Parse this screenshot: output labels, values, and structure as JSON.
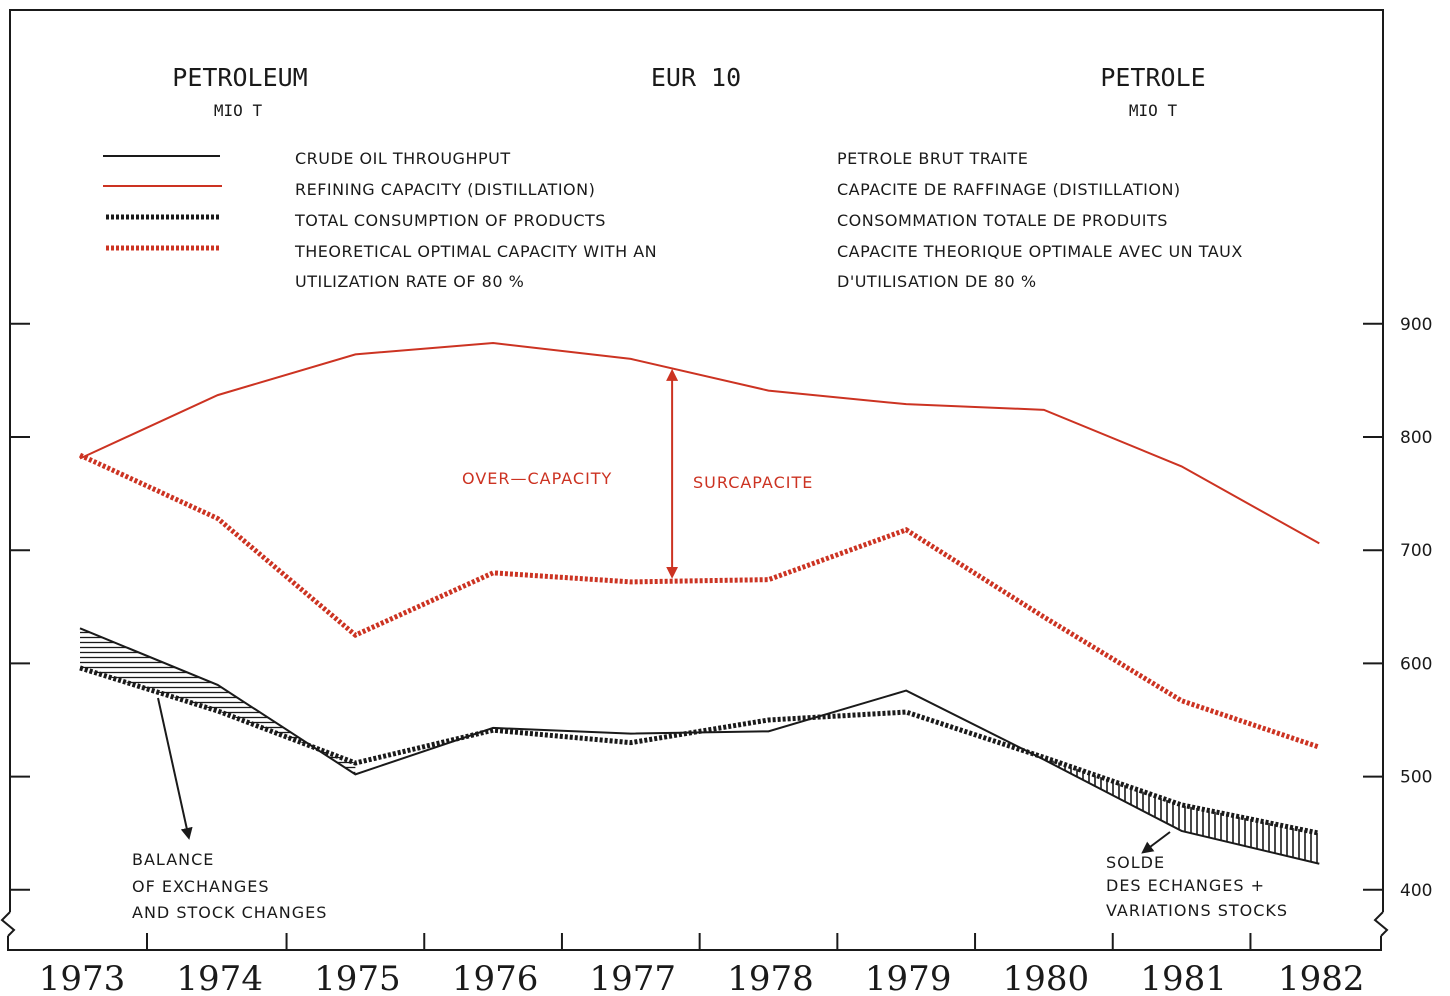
{
  "header": {
    "left_title": "PETROLEUM",
    "left_unit": "MIO T",
    "center_title": "EUR 10",
    "right_title": "PETROLE",
    "right_unit": "MIO T"
  },
  "legend": {
    "en": [
      "CRUDE OIL THROUGHPUT",
      "REFINING CAPACITY (DISTILLATION)",
      "TOTAL CONSUMPTION OF PRODUCTS",
      "THEORETICAL  OPTIMAL CAPACITY  WITH  AN",
      "UTILIZATION RATE OF 80 %"
    ],
    "fr": [
      "PETROLE BRUT TRAITE",
      "CAPACITE DE RAFFINAGE (DISTILLATION)",
      "CONSOMMATION TOTALE DE PRODUITS",
      "CAPACITE  THEORIQUE  OPTIMALE  AVEC  UN  TAUX",
      "D'UTILISATION DE 80 %"
    ]
  },
  "annotations": {
    "overcapacity_en": "OVER—CAPACITY",
    "overcapacity_fr": "SURCAPACITE",
    "balance_en": [
      "BALANCE",
      "OF  EXCHANGES",
      "AND  STOCK  CHANGES"
    ],
    "balance_fr": [
      "SOLDE",
      "DES  ECHANGES   +",
      "VARIATIONS  STOCKS"
    ]
  },
  "colors": {
    "black_line": "#1a1a1a",
    "red_line": "#cc3322"
  },
  "chart_data": {
    "type": "line",
    "x": [
      1973,
      1974,
      1975,
      1976,
      1977,
      1978,
      1979,
      1980,
      1981,
      1982
    ],
    "x_tick_labels": [
      "1973",
      "1974",
      "1975",
      "1976",
      "1977",
      "1978",
      "1979",
      "1980",
      "1981",
      "1982"
    ],
    "y_ticks": [
      400,
      500,
      600,
      700,
      800,
      900
    ],
    "y_tick_labels": [
      "400",
      "500",
      "600",
      "700",
      "800",
      "900"
    ],
    "ylim": [
      380,
      920
    ],
    "series": [
      {
        "name": "CRUDE OIL THROUGHPUT",
        "style": "solid",
        "color": "#1a1a1a",
        "values": [
          631,
          581,
          502,
          543,
          538,
          540,
          576,
          515,
          452,
          423
        ]
      },
      {
        "name": "REFINING CAPACITY (DISTILLATION)",
        "style": "solid",
        "color": "#cc3322",
        "values": [
          781,
          837,
          873,
          883,
          869,
          841,
          829,
          824,
          774,
          706
        ]
      },
      {
        "name": "TOTAL CONSUMPTION OF PRODUCTS",
        "style": "dotted",
        "color": "#1a1a1a",
        "values": [
          596,
          558,
          512,
          541,
          530,
          550,
          557,
          517,
          475,
          450
        ]
      },
      {
        "name": "THEORETICAL OPTIMAL CAPACITY WITH AN UTILIZATION RATE OF 80 %",
        "style": "dotted",
        "color": "#cc3322",
        "values": [
          784,
          728,
          625,
          680,
          672,
          674,
          718,
          641,
          567,
          526
        ]
      }
    ],
    "overcapacity_arrow": {
      "x": 1977.3,
      "from": 673,
      "to": 862
    },
    "grid": false
  }
}
